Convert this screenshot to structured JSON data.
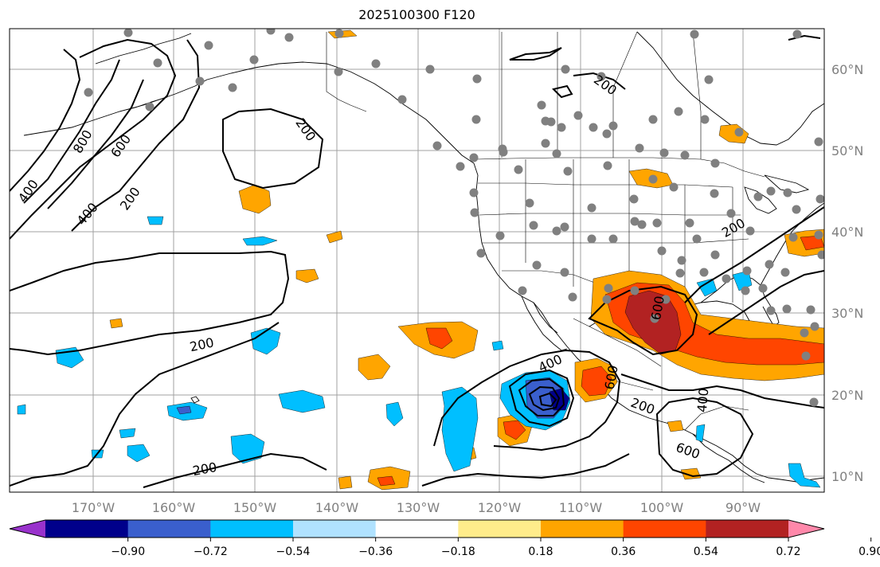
{
  "title": "2025100300 F120",
  "lon_labels": [
    "170°W",
    "160°W",
    "150°W",
    "140°W",
    "130°W",
    "120°W",
    "110°W",
    "100°W",
    "90°W"
  ],
  "lat_labels": [
    "60°N",
    "50°N",
    "40°N",
    "30°N",
    "20°N",
    "10°N"
  ],
  "contour_labels": [
    "400",
    "800",
    "600",
    "200",
    "400",
    "200",
    "200",
    "200",
    "200",
    "200",
    "400",
    "600",
    "600",
    "200",
    "400",
    "600"
  ],
  "colorbar": {
    "colors": [
      "#9932cc",
      "#00008b",
      "#3a5fcd",
      "#00bfff",
      "#b0e2ff",
      "#ffffff",
      "#ffec8b",
      "#ffa500",
      "#ff4500",
      "#b22222",
      "#ff88aa"
    ],
    "ticks": [
      "−0.90",
      "−0.72",
      "−0.54",
      "−0.36",
      "−0.18",
      "0.18",
      "0.36",
      "0.54",
      "0.72",
      "0.90"
    ]
  },
  "colors": {
    "gridline": "#a0a0a0",
    "station": "#808080",
    "contour": "#000000"
  }
}
